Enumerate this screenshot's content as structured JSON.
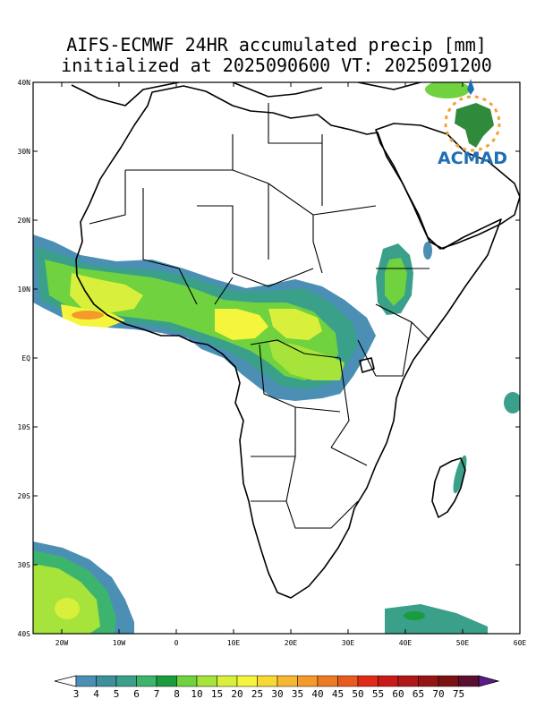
{
  "title": {
    "line1": "AIFS-ECMWF 24HR accumulated precip [mm]",
    "line2": "initialized at 2025090600 VT: 2025091200"
  },
  "map": {
    "lon_range": [
      -25,
      60
    ],
    "lat_range": [
      -40,
      40
    ],
    "lon_ticks": [
      {
        "value": -20,
        "label": "20W"
      },
      {
        "value": -10,
        "label": "10W"
      },
      {
        "value": 0,
        "label": "0"
      },
      {
        "value": 10,
        "label": "10E"
      },
      {
        "value": 20,
        "label": "20E"
      },
      {
        "value": 30,
        "label": "30E"
      },
      {
        "value": 40,
        "label": "40E"
      },
      {
        "value": 50,
        "label": "50E"
      },
      {
        "value": 60,
        "label": "60E"
      }
    ],
    "lat_ticks": [
      {
        "value": 40,
        "label": "40N"
      },
      {
        "value": 30,
        "label": "30N"
      },
      {
        "value": 20,
        "label": "20N"
      },
      {
        "value": 10,
        "label": "10N"
      },
      {
        "value": 0,
        "label": "EQ"
      },
      {
        "value": -10,
        "label": "10S"
      },
      {
        "value": -20,
        "label": "20S"
      },
      {
        "value": -30,
        "label": "30S"
      },
      {
        "value": -40,
        "label": "40S"
      }
    ]
  },
  "logo": {
    "text": "ACMAD"
  },
  "colorbar": {
    "labels": [
      "3",
      "4",
      "5",
      "6",
      "7",
      "8",
      "10",
      "15",
      "20",
      "25",
      "30",
      "35",
      "40",
      "45",
      "50",
      "55",
      "60",
      "65",
      "70",
      "75"
    ],
    "colors": [
      "#4b8fb4",
      "#3f8f9c",
      "#3aa08a",
      "#3cb46e",
      "#1a9b3c",
      "#6fd23e",
      "#a6e33b",
      "#d8f03c",
      "#f4f53c",
      "#f7d934",
      "#f6b830",
      "#f39a2b",
      "#ee7a24",
      "#e95a1f",
      "#e02a17",
      "#c81b17",
      "#b01818",
      "#951515",
      "#7a1212",
      "#5a0f2e"
    ],
    "end_color": "#5b1b8c"
  }
}
